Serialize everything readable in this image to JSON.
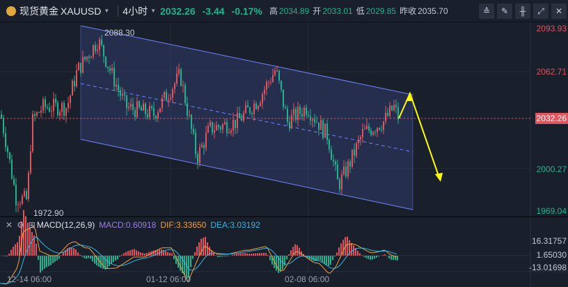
{
  "header": {
    "name": "现货黄金",
    "symbol": "XAUUSD",
    "interval": "4小时",
    "price": "2032.26",
    "change": "-3.44",
    "change_pct": "-0.17%",
    "high_label": "高",
    "high": "2034.89",
    "open_label": "开",
    "open": "2033.01",
    "low_label": "低",
    "low": "2029.85",
    "prev_label": "昨收",
    "prev": "2035.70"
  },
  "toolbar": [
    {
      "icon": "indicator-icon",
      "glyph": "≙"
    },
    {
      "icon": "draw-icon",
      "glyph": "✎"
    },
    {
      "icon": "candle-type-icon",
      "glyph": "╫"
    },
    {
      "icon": "expand-icon",
      "glyph": "⤢"
    },
    {
      "icon": "close-icon",
      "glyph": "✕"
    }
  ],
  "price_axis": [
    "2093.93",
    "2062.71",
    "2000.27",
    "1969.04"
  ],
  "current_price": "2032.26",
  "annotations": {
    "high": "2088.30",
    "low": "1972.90"
  },
  "macd": {
    "name": "MACD(12,26,9)",
    "macd": "MACD:0.60918",
    "dif": "DIF:3.33650",
    "dea": "DEA:3.03192",
    "axis": [
      "16.31757",
      "1.65030",
      "-13.01698"
    ]
  },
  "x_axis": [
    "12-14 06:00",
    "01-12 06:00",
    "02-08 06:00"
  ],
  "colors": {
    "up": "#e0555e",
    "down": "#1fb48e",
    "dif": "#f0a040",
    "dea": "#33b8e0",
    "macd": "#9b7fe0",
    "arrow": "#ffff00",
    "channel": "#6f86ff"
  }
}
